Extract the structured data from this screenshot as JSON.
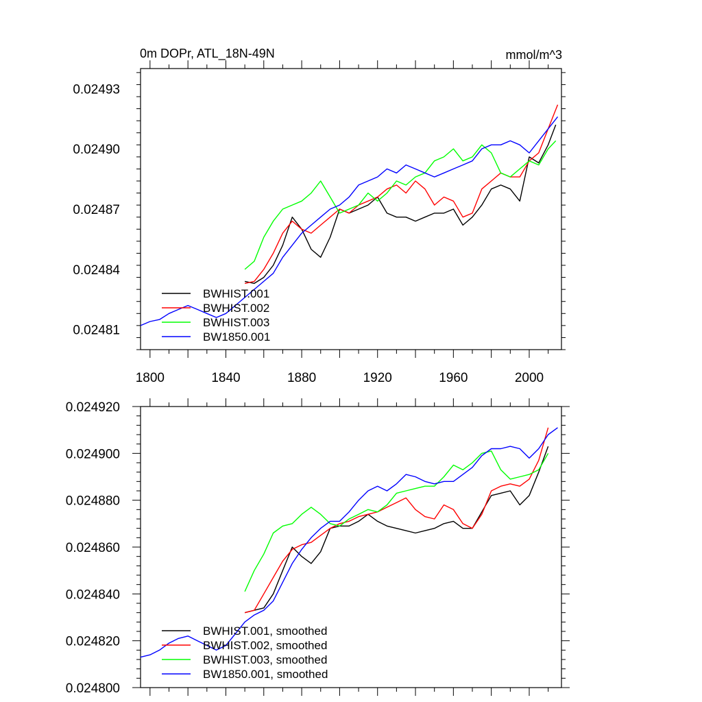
{
  "chart_data": [
    {
      "type": "line",
      "title": "0m DOPr, ATL_18N-49N",
      "units": "mmol/m^3",
      "xlabel": "",
      "ylabel": "",
      "xlim": [
        1795,
        2017
      ],
      "ylim": [
        0.0248,
        0.02494
      ],
      "xticks": [
        1800,
        1840,
        1880,
        1920,
        1960,
        2000
      ],
      "xtick_labels": [
        "1800",
        "1840",
        "1880",
        "1920",
        "1960",
        "2000"
      ],
      "yticks": [
        0.02481,
        0.02484,
        0.02487,
        0.0249,
        0.02493
      ],
      "ytick_labels": [
        "0.02481",
        "0.02484",
        "0.02487",
        "0.02490",
        "0.02493"
      ],
      "grid": false,
      "legend_position": "bottom-left",
      "series": [
        {
          "name": "BWHIST.001",
          "color": "#000000",
          "x": [
            1850,
            1855,
            1860,
            1865,
            1870,
            1875,
            1880,
            1885,
            1890,
            1895,
            1900,
            1905,
            1910,
            1915,
            1920,
            1925,
            1930,
            1935,
            1940,
            1945,
            1950,
            1955,
            1960,
            1965,
            1970,
            1975,
            1980,
            1985,
            1990,
            1995,
            2000,
            2005,
            2010,
            2014
          ],
          "y": [
            0.024834,
            0.024833,
            0.024836,
            0.024842,
            0.024852,
            0.024866,
            0.02486,
            0.02485,
            0.024846,
            0.024856,
            0.02487,
            0.024868,
            0.02487,
            0.024872,
            0.024876,
            0.024868,
            0.024866,
            0.024866,
            0.024864,
            0.024866,
            0.024868,
            0.024868,
            0.02487,
            0.024862,
            0.024866,
            0.024872,
            0.02488,
            0.024882,
            0.02488,
            0.024874,
            0.024896,
            0.024893,
            0.024902,
            0.024912
          ]
        },
        {
          "name": "BWHIST.002",
          "color": "#ff0000",
          "x": [
            1850,
            1855,
            1860,
            1865,
            1870,
            1875,
            1880,
            1885,
            1890,
            1895,
            1900,
            1905,
            1910,
            1915,
            1920,
            1925,
            1930,
            1935,
            1940,
            1945,
            1950,
            1955,
            1960,
            1965,
            1970,
            1975,
            1980,
            1985,
            1990,
            1995,
            2000,
            2005,
            2010,
            2015
          ],
          "y": [
            0.024833,
            0.024834,
            0.02484,
            0.024848,
            0.024858,
            0.024864,
            0.02486,
            0.024858,
            0.024862,
            0.024866,
            0.02487,
            0.024868,
            0.024872,
            0.024874,
            0.024876,
            0.02488,
            0.024882,
            0.024878,
            0.024884,
            0.02488,
            0.024872,
            0.024876,
            0.024874,
            0.024866,
            0.024868,
            0.02488,
            0.024884,
            0.024888,
            0.024886,
            0.024886,
            0.024894,
            0.024898,
            0.02491,
            0.024922
          ]
        },
        {
          "name": "BWHIST.003",
          "color": "#00ff00",
          "x": [
            1850,
            1855,
            1860,
            1865,
            1870,
            1875,
            1880,
            1885,
            1890,
            1895,
            1900,
            1905,
            1910,
            1915,
            1920,
            1925,
            1930,
            1935,
            1940,
            1945,
            1950,
            1955,
            1960,
            1965,
            1970,
            1975,
            1980,
            1985,
            1990,
            1995,
            2000,
            2005,
            2010,
            2014
          ],
          "y": [
            0.02484,
            0.024844,
            0.024856,
            0.024864,
            0.02487,
            0.024872,
            0.024874,
            0.024878,
            0.024884,
            0.024876,
            0.024868,
            0.02487,
            0.024872,
            0.024878,
            0.024874,
            0.024878,
            0.024884,
            0.024882,
            0.024886,
            0.024888,
            0.024894,
            0.024896,
            0.0249,
            0.024894,
            0.024896,
            0.024902,
            0.024898,
            0.024888,
            0.024886,
            0.02489,
            0.024894,
            0.024892,
            0.0249,
            0.024904
          ]
        },
        {
          "name": "BW1850.001",
          "color": "#0000ff",
          "x": [
            1795,
            1800,
            1805,
            1810,
            1815,
            1820,
            1825,
            1830,
            1835,
            1840,
            1845,
            1850,
            1855,
            1860,
            1865,
            1870,
            1875,
            1880,
            1885,
            1890,
            1895,
            1900,
            1905,
            1910,
            1915,
            1920,
            1925,
            1930,
            1935,
            1940,
            1945,
            1950,
            1955,
            1960,
            1965,
            1970,
            1975,
            1980,
            1985,
            1990,
            1995,
            2000,
            2005,
            2010,
            2015
          ],
          "y": [
            0.024812,
            0.024814,
            0.024815,
            0.024818,
            0.02482,
            0.024822,
            0.02482,
            0.024818,
            0.024816,
            0.024818,
            0.024822,
            0.024826,
            0.02483,
            0.024834,
            0.024838,
            0.024846,
            0.024852,
            0.024858,
            0.024862,
            0.024866,
            0.02487,
            0.024872,
            0.024876,
            0.024882,
            0.024884,
            0.024886,
            0.02489,
            0.024888,
            0.024892,
            0.02489,
            0.024888,
            0.024886,
            0.024888,
            0.02489,
            0.024892,
            0.024894,
            0.0249,
            0.024902,
            0.024902,
            0.024904,
            0.024902,
            0.024898,
            0.024904,
            0.02491,
            0.024916
          ]
        }
      ]
    },
    {
      "type": "line",
      "title": "",
      "xlabel": "",
      "ylabel": "",
      "xlim": [
        1795,
        2017
      ],
      "ylim": [
        0.0248,
        0.02492
      ],
      "yticks": [
        0.0248,
        0.02482,
        0.02484,
        0.02486,
        0.02488,
        0.0249,
        0.02492
      ],
      "ytick_labels": [
        "0.024800",
        "0.024820",
        "0.024840",
        "0.024860",
        "0.024880",
        "0.024900",
        "0.024920"
      ],
      "grid": false,
      "legend_position": "bottom-left",
      "series": [
        {
          "name": "BWHIST.001, smoothed",
          "color": "#000000",
          "x": [
            1850,
            1855,
            1860,
            1865,
            1870,
            1875,
            1880,
            1885,
            1890,
            1895,
            1900,
            1905,
            1910,
            1915,
            1920,
            1925,
            1930,
            1935,
            1940,
            1945,
            1950,
            1955,
            1960,
            1965,
            1970,
            1975,
            1980,
            1985,
            1990,
            1995,
            2000,
            2005,
            2010
          ],
          "y": [
            0.024832,
            0.024833,
            0.024834,
            0.02484,
            0.02485,
            0.02486,
            0.024856,
            0.024853,
            0.024858,
            0.024868,
            0.024869,
            0.024869,
            0.024871,
            0.024874,
            0.024871,
            0.024869,
            0.024868,
            0.024867,
            0.024866,
            0.024867,
            0.024868,
            0.02487,
            0.024871,
            0.024868,
            0.024868,
            0.024875,
            0.024882,
            0.024883,
            0.024884,
            0.024878,
            0.024882,
            0.024892,
            0.024903
          ]
        },
        {
          "name": "BWHIST.002, smoothed",
          "color": "#ff0000",
          "x": [
            1850,
            1855,
            1860,
            1865,
            1870,
            1875,
            1880,
            1885,
            1890,
            1895,
            1900,
            1905,
            1910,
            1915,
            1920,
            1925,
            1930,
            1935,
            1940,
            1945,
            1950,
            1955,
            1960,
            1965,
            1970,
            1975,
            1980,
            1985,
            1990,
            1995,
            2000,
            2005,
            2010
          ],
          "y": [
            0.024832,
            0.024833,
            0.02484,
            0.024847,
            0.024854,
            0.024859,
            0.024861,
            0.024862,
            0.024865,
            0.024868,
            0.02487,
            0.024871,
            0.024873,
            0.024874,
            0.024875,
            0.024877,
            0.024879,
            0.024881,
            0.024876,
            0.024873,
            0.024872,
            0.024878,
            0.024876,
            0.02487,
            0.024868,
            0.024874,
            0.024884,
            0.024886,
            0.024887,
            0.024886,
            0.024889,
            0.024897,
            0.024911
          ]
        },
        {
          "name": "BWHIST.003, smoothed",
          "color": "#00ff00",
          "x": [
            1850,
            1855,
            1860,
            1865,
            1870,
            1875,
            1880,
            1885,
            1890,
            1895,
            1900,
            1905,
            1910,
            1915,
            1920,
            1925,
            1930,
            1935,
            1940,
            1945,
            1950,
            1955,
            1960,
            1965,
            1970,
            1975,
            1980,
            1985,
            1990,
            1995,
            2000,
            2005,
            2010
          ],
          "y": [
            0.024841,
            0.02485,
            0.024857,
            0.024866,
            0.024869,
            0.02487,
            0.024874,
            0.024877,
            0.024874,
            0.02487,
            0.024869,
            0.024872,
            0.024874,
            0.024876,
            0.024875,
            0.024878,
            0.024883,
            0.024884,
            0.024885,
            0.024886,
            0.024886,
            0.02489,
            0.024895,
            0.024893,
            0.024896,
            0.0249,
            0.024901,
            0.024893,
            0.024889,
            0.02489,
            0.024891,
            0.024893,
            0.0249
          ]
        },
        {
          "name": "BW1850.001, smoothed",
          "color": "#0000ff",
          "x": [
            1795,
            1800,
            1805,
            1810,
            1815,
            1820,
            1825,
            1830,
            1835,
            1840,
            1845,
            1850,
            1855,
            1860,
            1865,
            1870,
            1875,
            1880,
            1885,
            1890,
            1895,
            1900,
            1905,
            1910,
            1915,
            1920,
            1925,
            1930,
            1935,
            1940,
            1945,
            1950,
            1955,
            1960,
            1965,
            1970,
            1975,
            1980,
            1985,
            1990,
            1995,
            2000,
            2005,
            2010,
            2015
          ],
          "y": [
            0.024813,
            0.024814,
            0.024816,
            0.024819,
            0.024821,
            0.024822,
            0.02482,
            0.024818,
            0.024816,
            0.024818,
            0.024823,
            0.024828,
            0.024831,
            0.024833,
            0.024837,
            0.024845,
            0.024853,
            0.024859,
            0.024864,
            0.024868,
            0.024871,
            0.024871,
            0.024875,
            0.02488,
            0.024884,
            0.024886,
            0.024884,
            0.024887,
            0.024891,
            0.02489,
            0.024888,
            0.024887,
            0.024888,
            0.024888,
            0.024891,
            0.024894,
            0.024899,
            0.024902,
            0.024902,
            0.024903,
            0.024902,
            0.024898,
            0.024902,
            0.024908,
            0.024911
          ]
        }
      ]
    }
  ]
}
